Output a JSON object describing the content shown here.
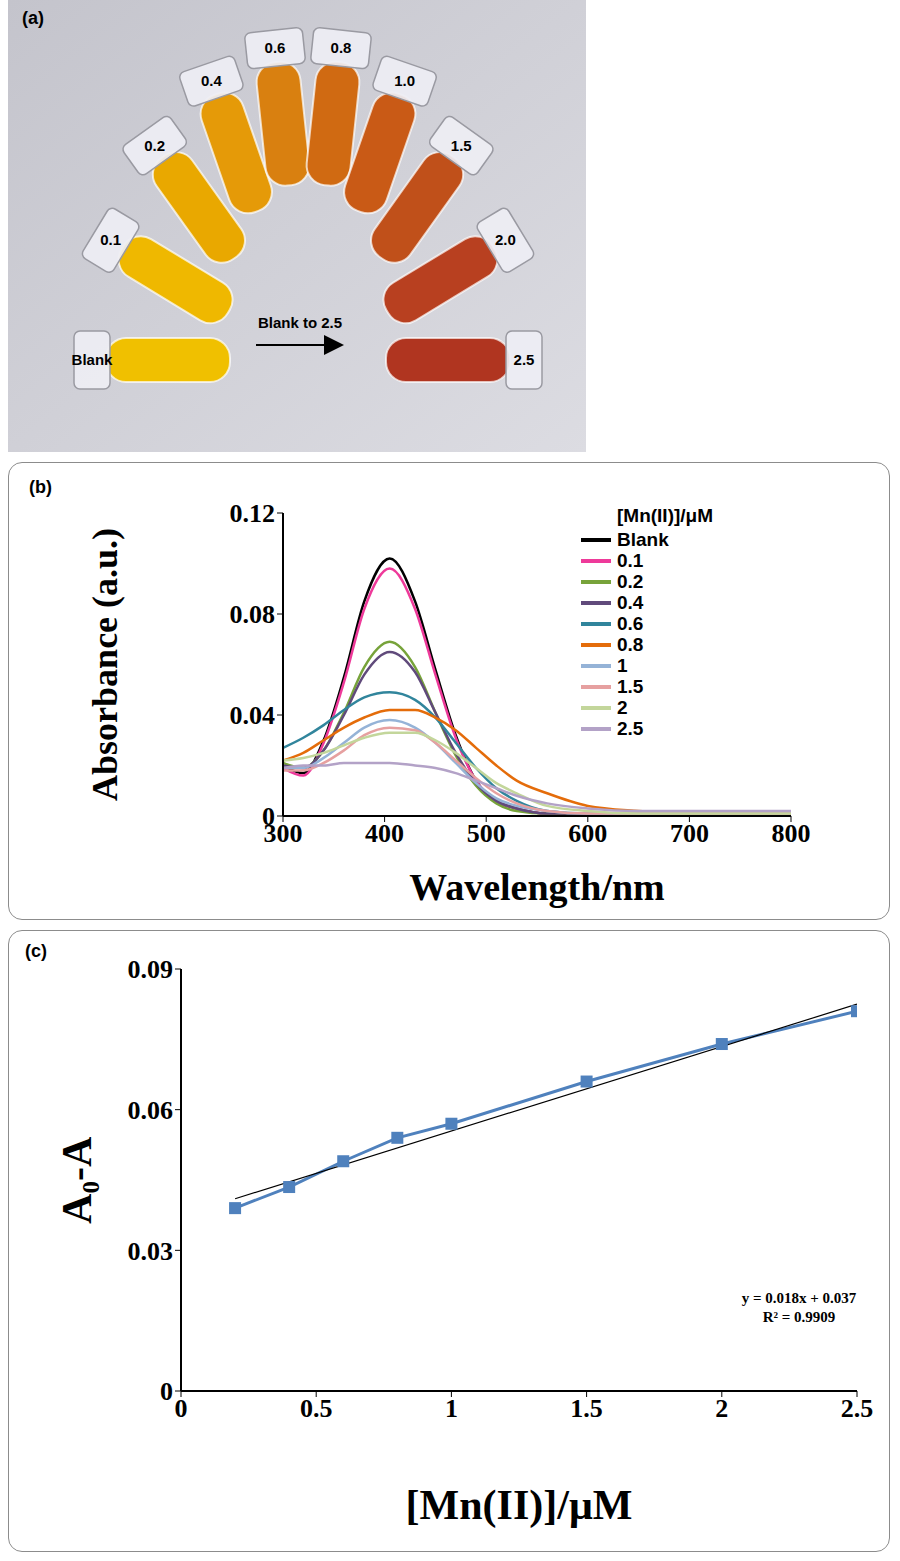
{
  "photo": {
    "panel": "(a)",
    "tubes": {
      "labels": [
        "Blank",
        "0.1",
        "0.2",
        "0.4",
        "0.6",
        "0.8",
        "1.0",
        "1.5",
        "2.0",
        "2.5"
      ],
      "colors": [
        "#f0c000",
        "#efb800",
        "#e9a800",
        "#e59a08",
        "#d98010",
        "#d06a12",
        "#c95a16",
        "#c0501a",
        "#b84020",
        "#b03520"
      ]
    },
    "annotation": "Blank to 2.5"
  },
  "chart_data": [
    {
      "panel": "(b)",
      "type": "line",
      "x_label": "Wavelength/nm",
      "y_label": "Absorbance (a.u.)",
      "legend_title": "[Mn(II)]/μM",
      "legend": "top right",
      "xlim": [
        300,
        800
      ],
      "xticks": [
        300,
        400,
        500,
        600,
        700,
        800
      ],
      "ylim": [
        0,
        0.12
      ],
      "yticks": [
        0,
        0.04,
        0.08,
        0.12
      ],
      "x": [
        300,
        320,
        340,
        360,
        380,
        405,
        430,
        450,
        470,
        490,
        510,
        530,
        560,
        600,
        650,
        700,
        800
      ],
      "series": [
        {
          "name": "Blank",
          "color": "#000000",
          "values": [
            0.02,
            0.017,
            0.03,
            0.055,
            0.085,
            0.102,
            0.085,
            0.058,
            0.032,
            0.014,
            0.006,
            0.003,
            0.001,
            0.001,
            0.001,
            0.001,
            0.001
          ]
        },
        {
          "name": "0.1",
          "color": "#ee3a9a",
          "values": [
            0.019,
            0.016,
            0.029,
            0.053,
            0.082,
            0.098,
            0.082,
            0.056,
            0.031,
            0.014,
            0.006,
            0.003,
            0.001,
            0.001,
            0.001,
            0.001,
            0.001
          ]
        },
        {
          "name": "0.2",
          "color": "#77a33a",
          "values": [
            0.021,
            0.019,
            0.026,
            0.041,
            0.059,
            0.069,
            0.059,
            0.041,
            0.024,
            0.012,
            0.005,
            0.002,
            0.001,
            0.001,
            0.001,
            0.001,
            0.001
          ]
        },
        {
          "name": "0.4",
          "color": "#604a7b",
          "values": [
            0.02,
            0.019,
            0.026,
            0.04,
            0.056,
            0.065,
            0.057,
            0.041,
            0.025,
            0.013,
            0.006,
            0.003,
            0.001,
            0.001,
            0.001,
            0.001,
            0.001
          ]
        },
        {
          "name": "0.6",
          "color": "#31859c",
          "values": [
            0.027,
            0.031,
            0.036,
            0.042,
            0.047,
            0.049,
            0.046,
            0.039,
            0.029,
            0.019,
            0.011,
            0.006,
            0.002,
            0.001,
            0.001,
            0.001,
            0.001
          ]
        },
        {
          "name": "0.8",
          "color": "#e46c0a",
          "values": [
            0.022,
            0.025,
            0.03,
            0.035,
            0.039,
            0.042,
            0.042,
            0.039,
            0.034,
            0.027,
            0.02,
            0.014,
            0.009,
            0.004,
            0.002,
            0.001,
            0.001
          ]
        },
        {
          "name": "1",
          "color": "#95b3d7",
          "values": [
            0.019,
            0.019,
            0.023,
            0.029,
            0.035,
            0.038,
            0.035,
            0.029,
            0.021,
            0.013,
            0.007,
            0.004,
            0.002,
            0.001,
            0.001,
            0.001,
            0.001
          ]
        },
        {
          "name": "1.5",
          "color": "#e6a0a0",
          "values": [
            0.018,
            0.018,
            0.021,
            0.026,
            0.032,
            0.035,
            0.034,
            0.029,
            0.022,
            0.015,
            0.009,
            0.005,
            0.002,
            0.001,
            0.001,
            0.001,
            0.001
          ]
        },
        {
          "name": "2",
          "color": "#c3d69b",
          "values": [
            0.022,
            0.023,
            0.025,
            0.028,
            0.031,
            0.033,
            0.033,
            0.03,
            0.025,
            0.019,
            0.013,
            0.009,
            0.004,
            0.002,
            0.001,
            0.001,
            0.001
          ]
        },
        {
          "name": "2.5",
          "color": "#b3a2c7",
          "values": [
            0.019,
            0.02,
            0.02,
            0.021,
            0.021,
            0.021,
            0.02,
            0.019,
            0.017,
            0.014,
            0.011,
            0.008,
            0.005,
            0.003,
            0.002,
            0.002,
            0.002
          ]
        }
      ]
    },
    {
      "panel": "(c)",
      "type": "line",
      "x_label": "[Mn(II)]/μM",
      "y_label": "A₀-A",
      "xlim": [
        0,
        2.5
      ],
      "xticks": [
        0,
        0.5,
        1,
        1.5,
        2,
        2.5
      ],
      "ylim": [
        0,
        0.09
      ],
      "yticks": [
        0,
        0.03,
        0.06,
        0.09
      ],
      "x": [
        0.2,
        0.4,
        0.6,
        0.8,
        1,
        1.5,
        2,
        2.5
      ],
      "series": [
        {
          "color": "#4f81bd",
          "marker": "square",
          "values": [
            0.039,
            0.0435,
            0.049,
            0.054,
            0.057,
            0.066,
            0.074,
            0.081
          ]
        }
      ],
      "trendline": {
        "x": [
          0.2,
          2.5
        ],
        "values": [
          0.041,
          0.0825
        ],
        "color": "#000000"
      },
      "annotations": [
        "y = 0.018x + 0.037",
        "R² = 0.9909"
      ]
    }
  ]
}
